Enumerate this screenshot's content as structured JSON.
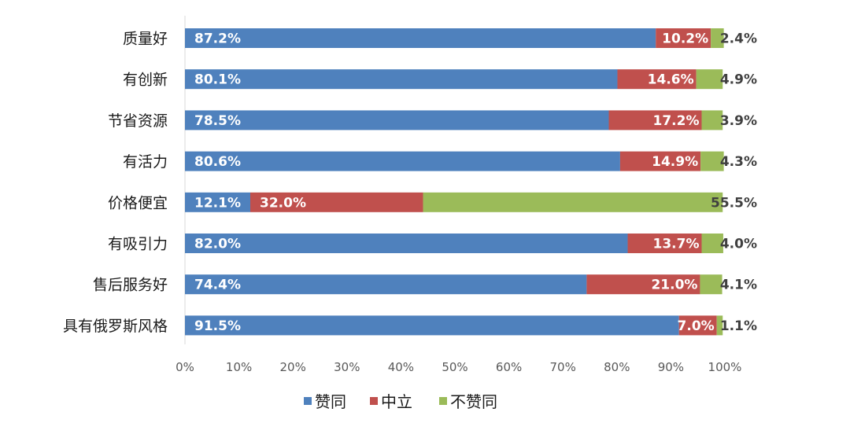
{
  "chart_data": {
    "type": "bar",
    "orientation": "horizontal",
    "stacked": true,
    "percent_stacked": true,
    "categories": [
      "质量好",
      "有创新",
      "节省资源",
      "有活力",
      "价格便宜",
      "有吸引力",
      "售后服务好",
      "具有俄罗斯风格"
    ],
    "series": [
      {
        "name": "赞同",
        "color": "#4f81bd",
        "values": [
          87.2,
          80.1,
          78.5,
          80.6,
          12.1,
          82.0,
          74.4,
          91.5
        ],
        "labels": [
          "87.2%",
          "80.1%",
          "78.5%",
          "80.6%",
          "12.1%",
          "82.0%",
          "74.4%",
          "91.5%"
        ]
      },
      {
        "name": "中立",
        "color": "#c0504d",
        "values": [
          10.2,
          14.6,
          17.2,
          14.9,
          32.0,
          13.7,
          21.0,
          7.0
        ],
        "labels": [
          "10.2%",
          "14.6%",
          "17.2%",
          "14.9%",
          "32.0%",
          "13.7%",
          "21.0%",
          "7.0%"
        ]
      },
      {
        "name": "不赞同",
        "color": "#9bbb59",
        "values": [
          2.4,
          4.9,
          3.9,
          4.3,
          55.5,
          4.0,
          4.1,
          1.1
        ],
        "labels": [
          "2.4%",
          "4.9%",
          "3.9%",
          "4.3%",
          "55.5%",
          "4.0%",
          "4.1%",
          "1.1%"
        ]
      }
    ],
    "x_ticks": [
      "0%",
      "10%",
      "20%",
      "30%",
      "40%",
      "50%",
      "60%",
      "70%",
      "80%",
      "90%",
      "100%"
    ],
    "xlim": [
      0,
      100
    ],
    "title": "",
    "xlabel": "",
    "ylabel": "",
    "grid": false,
    "legend_position": "bottom"
  }
}
